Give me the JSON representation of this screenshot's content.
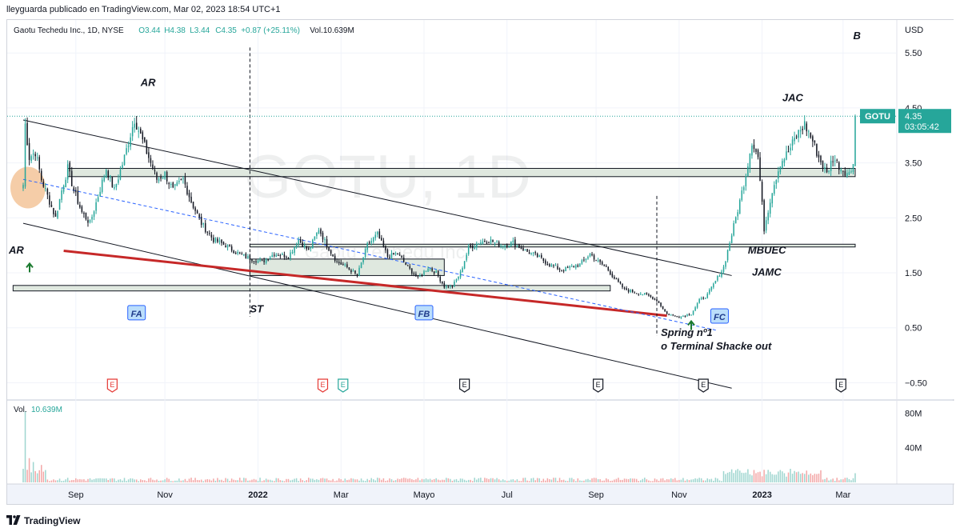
{
  "publish_note": "lleyguarda publicado en TradingView.com, Mar 02, 2023 18:54 UTC+1",
  "branding": "TradingView",
  "chart_data": {
    "type": "candlestick",
    "symbol_name": "Gaotu Techedu Inc., 1D, NYSE",
    "legend": {
      "open": "O3.44",
      "high": "H4.38",
      "low": "L3.44",
      "close": "C4.35",
      "change": "+0.87 (+25.11%)",
      "volume": "Vol.10.639M"
    },
    "watermark": "GOTU, 1D",
    "watermark_sub": "Gaotu Techedu Inc.",
    "currency": "USD",
    "price_ticks": [
      "5.50",
      "4.50",
      "3.50",
      "2.50",
      "1.50",
      "0.50",
      "−0.50"
    ],
    "price_tick_values": [
      5.5,
      4.5,
      3.5,
      2.5,
      1.5,
      0.5,
      -0.5
    ],
    "ylim": [
      -0.8,
      6.1
    ],
    "time_labels": [
      "Sep",
      "Nov",
      "2022",
      "Mar",
      "Mayo",
      "Jul",
      "Sep",
      "Nov",
      "2023",
      "Mar"
    ],
    "time_label_bar_index": [
      26,
      70,
      116,
      157,
      198,
      239,
      283,
      324,
      365,
      405
    ],
    "last_price": {
      "symbol": "GOTU",
      "price": "4.35",
      "countdown": "03:05:42",
      "value": 4.35
    },
    "volume_pane": {
      "label": "Vol.",
      "value": "10.639M",
      "ticks": [
        "80M",
        "40M"
      ],
      "tick_values": [
        80,
        40
      ],
      "max": 85
    },
    "price_path": [
      [
        0,
        3.1
      ],
      [
        1,
        4.2
      ],
      [
        3,
        3.6
      ],
      [
        6,
        3.7
      ],
      [
        9,
        3.2
      ],
      [
        13,
        2.8
      ],
      [
        16,
        2.5
      ],
      [
        19,
        3.0
      ],
      [
        22,
        3.4
      ],
      [
        25,
        3.0
      ],
      [
        29,
        2.6
      ],
      [
        33,
        2.4
      ],
      [
        37,
        2.9
      ],
      [
        41,
        3.4
      ],
      [
        45,
        3.0
      ],
      [
        50,
        3.6
      ],
      [
        55,
        4.3
      ],
      [
        58,
        4.0
      ],
      [
        62,
        3.6
      ],
      [
        66,
        3.2
      ],
      [
        70,
        3.3
      ],
      [
        74,
        3.0
      ],
      [
        79,
        3.2
      ],
      [
        83,
        2.8
      ],
      [
        88,
        2.4
      ],
      [
        94,
        2.1
      ],
      [
        100,
        2.0
      ],
      [
        104,
        1.9
      ],
      [
        109,
        1.8
      ],
      [
        113,
        1.75
      ],
      [
        118,
        1.7
      ],
      [
        124,
        1.85
      ],
      [
        131,
        1.8
      ],
      [
        136,
        2.1
      ],
      [
        141,
        1.9
      ],
      [
        146,
        2.3
      ],
      [
        150,
        2.0
      ],
      [
        155,
        1.7
      ],
      [
        160,
        1.6
      ],
      [
        165,
        1.45
      ],
      [
        170,
        2.0
      ],
      [
        175,
        2.2
      ],
      [
        180,
        1.8
      ],
      [
        185,
        1.85
      ],
      [
        190,
        1.6
      ],
      [
        195,
        1.4
      ],
      [
        200,
        1.6
      ],
      [
        204,
        1.5
      ],
      [
        208,
        1.25
      ],
      [
        212,
        1.25
      ],
      [
        216,
        1.5
      ],
      [
        220,
        1.95
      ],
      [
        225,
        2.05
      ],
      [
        230,
        2.1
      ],
      [
        236,
        2.0
      ],
      [
        242,
        2.05
      ],
      [
        248,
        1.9
      ],
      [
        254,
        1.8
      ],
      [
        260,
        1.65
      ],
      [
        266,
        1.55
      ],
      [
        270,
        1.6
      ],
      [
        275,
        1.65
      ],
      [
        280,
        1.85
      ],
      [
        284,
        1.7
      ],
      [
        288,
        1.6
      ],
      [
        292,
        1.4
      ],
      [
        297,
        1.2
      ],
      [
        302,
        1.15
      ],
      [
        308,
        1.1
      ],
      [
        313,
        1.0
      ],
      [
        318,
        0.75
      ],
      [
        324,
        0.7
      ],
      [
        330,
        0.75
      ],
      [
        334,
        1.0
      ],
      [
        338,
        1.1
      ],
      [
        342,
        1.35
      ],
      [
        346,
        1.6
      ],
      [
        350,
        2.2
      ],
      [
        354,
        2.8
      ],
      [
        357,
        3.3
      ],
      [
        360,
        3.9
      ],
      [
        363,
        3.6
      ],
      [
        366,
        2.3
      ],
      [
        370,
        3.0
      ],
      [
        374,
        3.5
      ],
      [
        378,
        3.7
      ],
      [
        382,
        4.0
      ],
      [
        386,
        4.2
      ],
      [
        390,
        3.9
      ],
      [
        393,
        3.6
      ],
      [
        397,
        3.3
      ],
      [
        400,
        3.6
      ],
      [
        404,
        3.4
      ],
      [
        408,
        3.3
      ],
      [
        410,
        3.45
      ],
      [
        411,
        4.35
      ]
    ],
    "annotations": [
      {
        "text": "AR",
        "bar": 58,
        "price": 4.9
      },
      {
        "text": "AR",
        "bar": 0,
        "price": 1.85
      },
      {
        "text": "ST",
        "bar": 112,
        "price": 0.78
      },
      {
        "text": "JAC",
        "bar": 375,
        "price": 4.62
      },
      {
        "text": "MBUEC",
        "bar": 358,
        "price": 1.85
      },
      {
        "text": "JAMC",
        "bar": 360,
        "price": 1.45
      },
      {
        "text": "Spring nº1",
        "bar": 315,
        "price": 0.35
      },
      {
        "text": "o Terminal Shacke out",
        "bar": 315,
        "price": 0.1
      },
      {
        "text": "B",
        "bar": 410,
        "price": 5.75
      }
    ],
    "phase_labels": [
      {
        "text": "FA",
        "bar": 56,
        "price": 0.73
      },
      {
        "text": "FB",
        "bar": 198,
        "price": 0.73
      },
      {
        "text": "FC",
        "bar": 344,
        "price": 0.67
      }
    ],
    "earnings_markers": [
      {
        "text": "E",
        "bar": 44,
        "style": "red"
      },
      {
        "text": "E",
        "bar": 148,
        "style": "red"
      },
      {
        "text": "E",
        "bar": 158,
        "style": "green"
      },
      {
        "text": "E",
        "bar": 218,
        "style": "gray"
      },
      {
        "text": "E",
        "bar": 284,
        "style": "gray"
      },
      {
        "text": "E",
        "bar": 336,
        "style": "gray"
      },
      {
        "text": "E",
        "bar": 404,
        "style": "gray"
      }
    ],
    "colors": {
      "up": "#26a69a",
      "down": "#131722",
      "support_line": "#c62828",
      "trend_lines": "#131722",
      "dashed_trend": "#2962ff",
      "zone_fill": "#dfe8df",
      "last_price_label": "#26a69a",
      "highlight_circle": "#f0b27a"
    }
  }
}
